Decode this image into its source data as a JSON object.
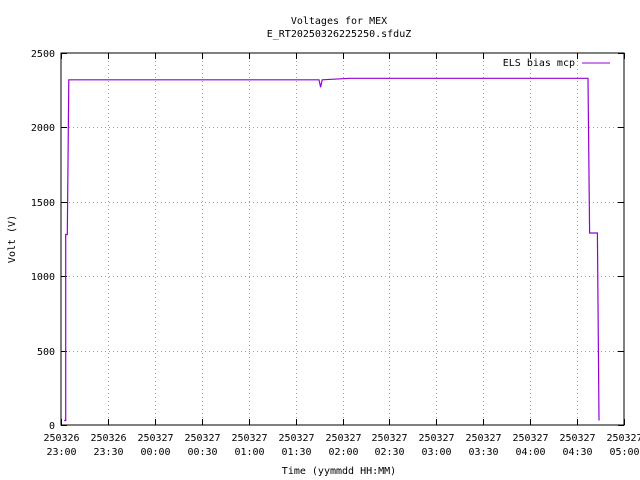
{
  "chart_data": {
    "type": "line",
    "title": "Voltages for MEX",
    "subtitle": "E_RT20250326225250.sfduZ",
    "xlabel": "Time (yymmdd HH:MM)",
    "ylabel": "Volt (V)",
    "xlim": [
      "2025-03-26 23:00",
      "2025-03-27 05:00"
    ],
    "ylim": [
      0,
      2500
    ],
    "x_ticks": [
      {
        "date": "250326",
        "time": "23:00"
      },
      {
        "date": "250326",
        "time": "23:30"
      },
      {
        "date": "250327",
        "time": "00:00"
      },
      {
        "date": "250327",
        "time": "00:30"
      },
      {
        "date": "250327",
        "time": "01:00"
      },
      {
        "date": "250327",
        "time": "01:30"
      },
      {
        "date": "250327",
        "time": "02:00"
      },
      {
        "date": "250327",
        "time": "02:30"
      },
      {
        "date": "250327",
        "time": "03:00"
      },
      {
        "date": "250327",
        "time": "03:30"
      },
      {
        "date": "250327",
        "time": "04:00"
      },
      {
        "date": "250327",
        "time": "04:30"
      },
      {
        "date": "250327",
        "time": "05:00"
      }
    ],
    "y_ticks": [
      "0",
      "500",
      "1000",
      "1500",
      "2000",
      "2500"
    ],
    "y_tick_values": [
      0,
      500,
      1000,
      1500,
      2000,
      2500
    ],
    "grid": true,
    "legend_position": "top-right",
    "series": [
      {
        "name": "ELS bias mcp",
        "color": "#9400d3",
        "x": [
          "2025-03-26 23:02",
          "2025-03-26 23:03",
          "2025-03-26 23:03",
          "2025-03-26 23:04",
          "2025-03-26 23:05",
          "2025-03-27 01:45",
          "2025-03-27 01:46",
          "2025-03-27 01:47",
          "2025-03-27 02:05",
          "2025-03-27 03:20",
          "2025-03-27 04:37",
          "2025-03-27 04:38",
          "2025-03-27 04:43",
          "2025-03-27 04:44"
        ],
        "y": [
          30,
          30,
          1280,
          1280,
          2320,
          2320,
          2270,
          2320,
          2330,
          2330,
          2330,
          1290,
          1290,
          30
        ]
      }
    ]
  }
}
